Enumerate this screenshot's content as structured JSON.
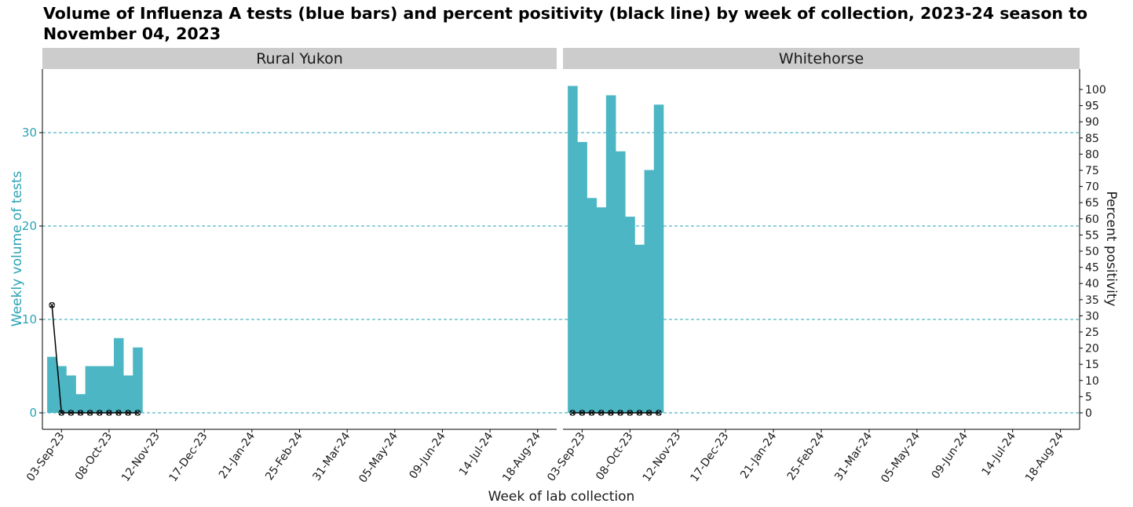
{
  "title": "Volume of Influenza A tests (blue bars) and percent positivity (black line) by week of collection, 2023-24 season to November 04, 2023",
  "colors": {
    "bar": "#4db6c4",
    "line": "#000000",
    "grid": "#2aa3b4",
    "left_axis_text": "#2aa3b4",
    "strip_bg": "#cccccc"
  },
  "chart_data": {
    "type": "bar",
    "x_tick_labels": [
      "03-Sep-23",
      "08-Oct-23",
      "12-Nov-23",
      "17-Dec-23",
      "21-Jan-24",
      "25-Feb-24",
      "31-Mar-24",
      "05-May-24",
      "09-Jun-24",
      "14-Jul-24",
      "18-Aug-24"
    ],
    "xlabel": "Week of lab collection",
    "ylabel_left": "Weekly volume of tests",
    "ylabel_right": "Percent positivity",
    "ylim_left": [
      0,
      35
    ],
    "y_ticks_left": [
      "0",
      "10",
      "20",
      "30"
    ],
    "ylim_right": [
      0,
      100
    ],
    "y_ticks_right": [
      "0",
      "5",
      "10",
      "15",
      "20",
      "25",
      "30",
      "35",
      "40",
      "45",
      "50",
      "55",
      "60",
      "65",
      "70",
      "75",
      "80",
      "85",
      "90",
      "95",
      "100"
    ],
    "grid": "horizontal dashed at left-axis major ticks",
    "panels": [
      {
        "name": "Rural Yukon",
        "weeks": [
          "2023-08-27",
          "2023-09-03",
          "2023-09-10",
          "2023-09-17",
          "2023-09-24",
          "2023-10-01",
          "2023-10-08",
          "2023-10-15",
          "2023-10-22",
          "2023-10-29"
        ],
        "tests": [
          6,
          5,
          4,
          2,
          5,
          5,
          5,
          8,
          4,
          7
        ],
        "percent_positivity": [
          33.3,
          0,
          0,
          0,
          0,
          0,
          0,
          0,
          0,
          0
        ]
      },
      {
        "name": "Whitehorse",
        "weeks": [
          "2023-08-27",
          "2023-09-03",
          "2023-09-10",
          "2023-09-17",
          "2023-09-24",
          "2023-10-01",
          "2023-10-08",
          "2023-10-15",
          "2023-10-22",
          "2023-10-29"
        ],
        "tests": [
          35,
          29,
          23,
          22,
          34,
          28,
          21,
          18,
          26,
          33
        ],
        "percent_positivity": [
          0,
          0,
          0,
          0,
          0,
          0,
          0,
          0,
          0,
          0
        ]
      }
    ]
  }
}
